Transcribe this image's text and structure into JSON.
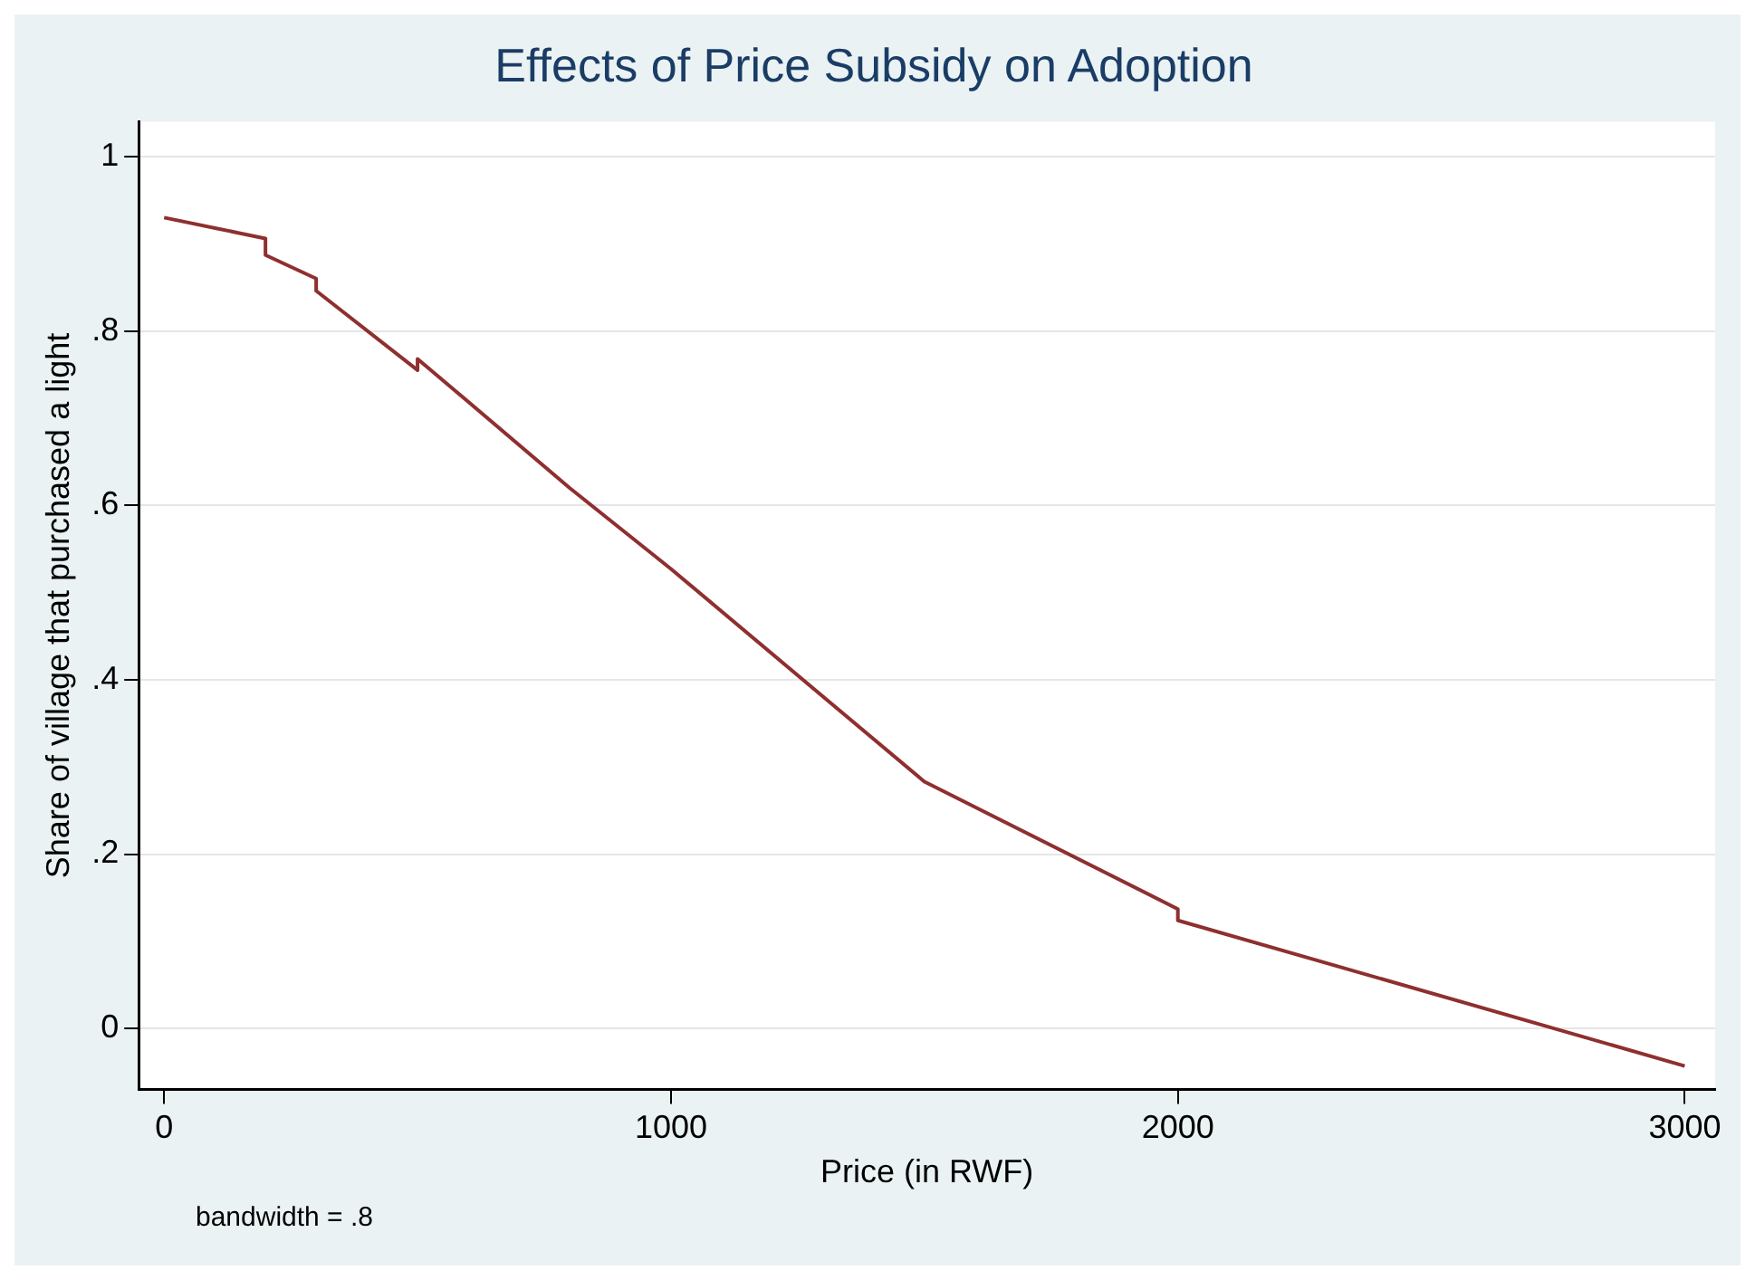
{
  "chart_data": {
    "type": "line",
    "title": "Effects of Price Subsidy on Adoption",
    "xlabel": "Price (in RWF)",
    "ylabel": "Share of village that purchased a light",
    "x": [
      0,
      200,
      200,
      300,
      300,
      500,
      500,
      800,
      1000,
      1500,
      2000,
      2000,
      3000
    ],
    "series": [
      {
        "color": "#8f2f2f",
        "values": [
          0.93,
          0.906,
          0.887,
          0.86,
          0.846,
          0.755,
          0.768,
          0.62,
          0.527,
          0.283,
          0.137,
          0.124,
          -0.043
        ]
      }
    ],
    "xlim": [
      -50,
      3060
    ],
    "xticks": [
      0,
      1000,
      2000,
      3000
    ],
    "ylim": [
      -0.07,
      1.04
    ],
    "yticks": [
      0,
      {
        "value": 0.2,
        "label": ".2"
      },
      {
        "value": 0.4,
        "label": ".4"
      },
      {
        "value": 0.6,
        "label": ".6"
      },
      {
        "value": 0.8,
        "label": ".8"
      },
      1
    ],
    "grid": "y",
    "legend": false,
    "marker": "none",
    "line_style": "solid",
    "annotations": [
      "bandwidth = .8"
    ]
  }
}
